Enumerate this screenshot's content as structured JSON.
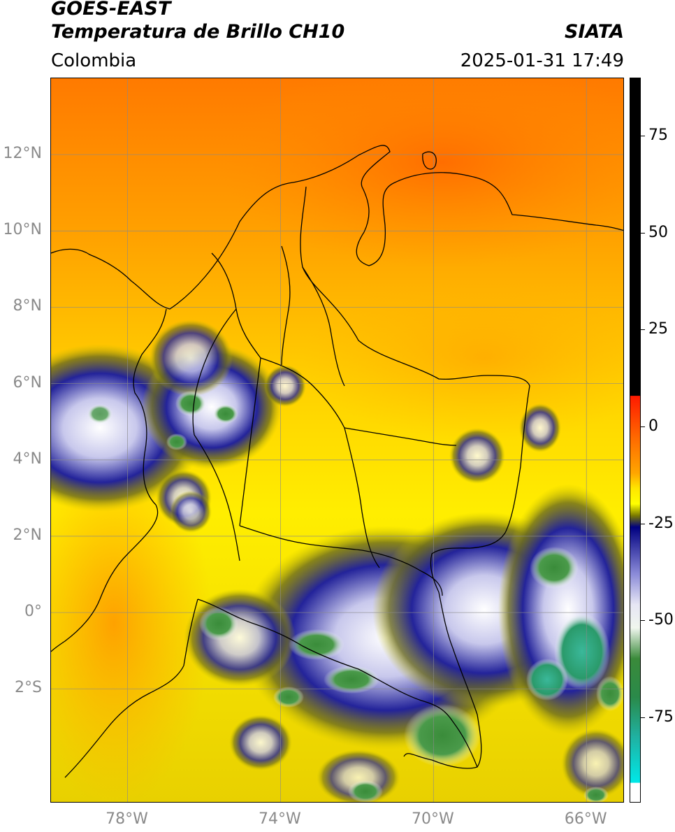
{
  "header": {
    "satellite": "GOES-EAST",
    "product": "Temperatura de Brillo CH10",
    "region": "Colombia",
    "agency": "SIATA",
    "timestamp": "2025-01-31 17:49"
  },
  "map": {
    "lon_range": [
      -80,
      -65
    ],
    "lat_range": [
      -5,
      14
    ],
    "lat_ticks": [
      {
        "value": 12,
        "label": "12°N"
      },
      {
        "value": 10,
        "label": "10°N"
      },
      {
        "value": 8,
        "label": "8°N"
      },
      {
        "value": 6,
        "label": "6°N"
      },
      {
        "value": 4,
        "label": "4°N"
      },
      {
        "value": 2,
        "label": "2°N"
      },
      {
        "value": 0,
        "label": "0°"
      },
      {
        "value": -2,
        "label": "2°S"
      }
    ],
    "lon_ticks": [
      {
        "value": -78,
        "label": "78°W"
      },
      {
        "value": -74,
        "label": "74°W"
      },
      {
        "value": -70,
        "label": "70°W"
      },
      {
        "value": -66,
        "label": "66°W"
      }
    ],
    "colors": {
      "warm": "#ff8c00",
      "mid": "#ffee00",
      "cold": "#1a1a8c",
      "coldest": "#3a9a3a"
    }
  },
  "colorbar": {
    "ticks": [
      {
        "value": 75,
        "label": "75"
      },
      {
        "value": 50,
        "label": "50"
      },
      {
        "value": 25,
        "label": "25"
      },
      {
        "value": 0,
        "label": "0"
      },
      {
        "value": -25,
        "label": "-25"
      },
      {
        "value": -50,
        "label": "-50"
      },
      {
        "value": -75,
        "label": "-75"
      }
    ],
    "stops": [
      {
        "value": 90,
        "color": "#000000"
      },
      {
        "value": 8,
        "color": "#000000"
      },
      {
        "value": 7.9,
        "color": "#ff1a00"
      },
      {
        "value": -3,
        "color": "#ff6a00"
      },
      {
        "value": -12,
        "color": "#ffa500"
      },
      {
        "value": -16,
        "color": "#ffe600"
      },
      {
        "value": -20,
        "color": "#ffff00"
      },
      {
        "value": -23,
        "color": "#7a7a00"
      },
      {
        "value": -26,
        "color": "#000080"
      },
      {
        "value": -38,
        "color": "#8a8ad8"
      },
      {
        "value": -46,
        "color": "#e6e6f4"
      },
      {
        "value": -52,
        "color": "#f0f6ee"
      },
      {
        "value": -60,
        "color": "#3a8a3a"
      },
      {
        "value": -70,
        "color": "#2a8a4a"
      },
      {
        "value": -80,
        "color": "#20b0a0"
      },
      {
        "value": -92,
        "color": "#00e8e8"
      },
      {
        "value": -92.1,
        "color": "#ffffff"
      },
      {
        "value": -97,
        "color": "#ffffff"
      }
    ]
  }
}
